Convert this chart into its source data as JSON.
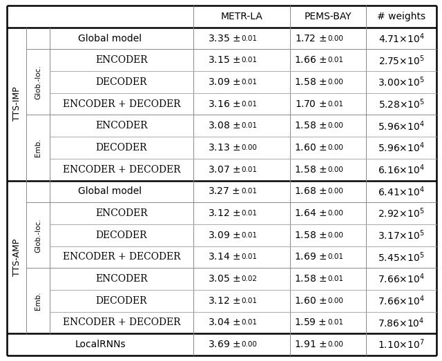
{
  "col_headers": [
    "METR-LA",
    "PEMS-BAY",
    "# weights"
  ],
  "tts_imp_global": [
    "3.35",
    "0.01",
    "1.72",
    "0.00",
    "4.71",
    "4"
  ],
  "tts_imp_glob_loc": [
    [
      "ENCODER",
      "3.15",
      "0.01",
      "1.66",
      "0.01",
      "2.75",
      "5"
    ],
    [
      "DECODER",
      "3.09",
      "0.01",
      "1.58",
      "0.00",
      "3.00",
      "5"
    ],
    [
      "ENCODER + DECODER",
      "3.16",
      "0.01",
      "1.70",
      "0.01",
      "5.28",
      "5"
    ]
  ],
  "tts_imp_emb": [
    [
      "ENCODER",
      "3.08",
      "0.01",
      "1.58",
      "0.00",
      "5.96",
      "4"
    ],
    [
      "DECODER",
      "3.13",
      "0.00",
      "1.60",
      "0.00",
      "5.96",
      "4"
    ],
    [
      "ENCODER + DECODER",
      "3.07",
      "0.01",
      "1.58",
      "0.00",
      "6.16",
      "4"
    ]
  ],
  "tts_amp_global": [
    "3.27",
    "0.01",
    "1.68",
    "0.00",
    "6.41",
    "4"
  ],
  "tts_amp_glob_loc": [
    [
      "ENCODER",
      "3.12",
      "0.01",
      "1.64",
      "0.00",
      "2.92",
      "5"
    ],
    [
      "DECODER",
      "3.09",
      "0.01",
      "1.58",
      "0.00",
      "3.17",
      "5"
    ],
    [
      "ENCODER + DECODER",
      "3.14",
      "0.01",
      "1.69",
      "0.01",
      "5.45",
      "5"
    ]
  ],
  "tts_amp_emb": [
    [
      "ENCODER",
      "3.05",
      "0.02",
      "1.58",
      "0.01",
      "7.66",
      "4"
    ],
    [
      "DECODER",
      "3.12",
      "0.01",
      "1.60",
      "0.00",
      "7.66",
      "4"
    ],
    [
      "ENCODER + DECODER",
      "3.04",
      "0.01",
      "1.59",
      "0.01",
      "7.86",
      "4"
    ]
  ],
  "local_rnns": [
    "3.69",
    "0.00",
    "1.91",
    "0.00",
    "1.10",
    "7"
  ]
}
